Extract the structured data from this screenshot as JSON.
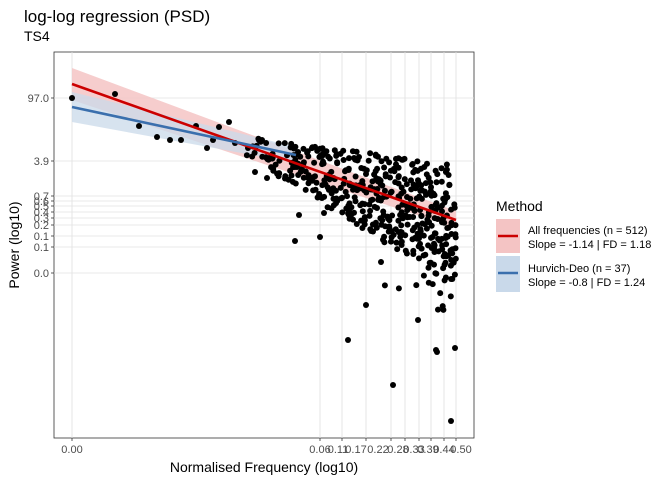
{
  "chart_data": {
    "type": "scatter",
    "title": "log-log regression (PSD)",
    "subtitle": "TS4",
    "xlabel": "Normalised Frequency (log10)",
    "ylabel": "Power (log10)",
    "x_scale": "log",
    "y_scale": "log",
    "grid": true,
    "legend_position": "right",
    "x_ticks": [
      "0.00",
      "0.06",
      "0.11",
      "0.17",
      "0.22",
      "0.28",
      "0.33",
      "0.39",
      "0.44",
      "0.50"
    ],
    "y_ticks": [
      "97.0",
      "3.9",
      "0.7",
      "0.6",
      "0.5",
      "0.4",
      "0.3",
      "0.2",
      "0.1",
      "0.1",
      "0.0"
    ],
    "legend": {
      "title": "Method",
      "entries": [
        {
          "line1": "All frequencies (n = 512)",
          "line2": "Slope = -1.14 | FD = 1.18",
          "color": "#cc0000",
          "fill": "#f4c4c4"
        },
        {
          "line1": "Hurvich-Deo (n = 37)",
          "line2": "Slope = -0.8 | FD = 1.24",
          "color": "#3a6fad",
          "fill": "#c9d9ea"
        }
      ]
    },
    "series": [
      {
        "name": "All frequencies (n = 512)",
        "type": "fit",
        "color": "#cc0000",
        "slope": -1.14,
        "intercept_log10": 2.3,
        "ci_log10": 0.25
      },
      {
        "name": "Hurvich-Deo (n = 37)",
        "type": "fit",
        "color": "#3a6fad",
        "slope": -0.8,
        "intercept_log10": 1.9,
        "ci_log10": 0.2
      }
    ],
    "points": {
      "n": 512,
      "color": "#000000"
    }
  }
}
